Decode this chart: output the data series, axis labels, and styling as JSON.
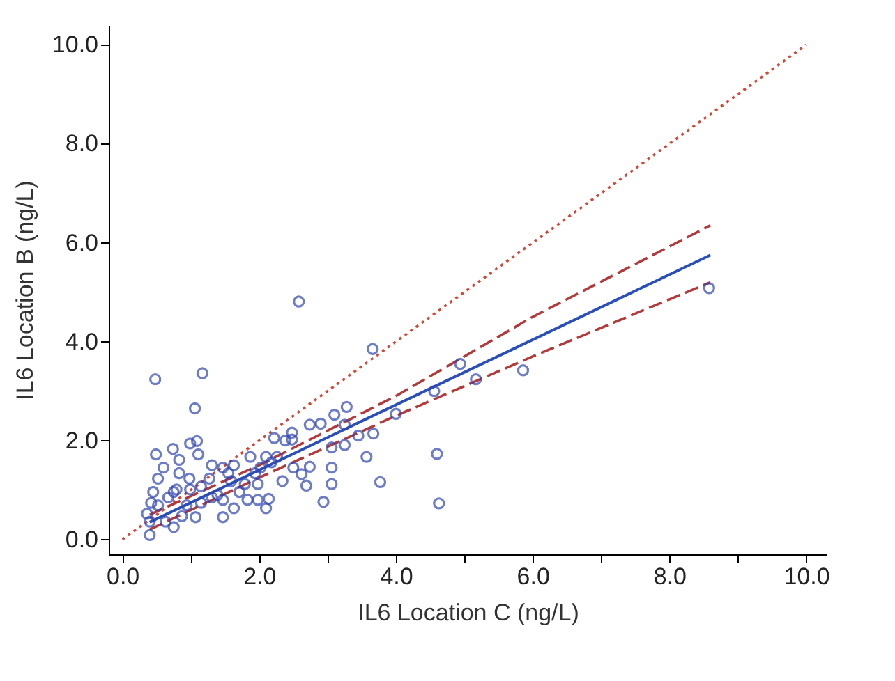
{
  "chart_data": {
    "type": "scatter",
    "xlabel": "IL6 Location C (ng/L)",
    "ylabel": "IL6 Location B (ng/L)",
    "xlim": [
      -0.2,
      10.3
    ],
    "ylim": [
      -0.3,
      10.4
    ],
    "xticks": [
      {
        "value": 0,
        "label": "0.0"
      },
      {
        "value": 1,
        "label": null
      },
      {
        "value": 2,
        "label": "2.0"
      },
      {
        "value": 3,
        "label": null
      },
      {
        "value": 4,
        "label": "4.0"
      },
      {
        "value": 5,
        "label": null
      },
      {
        "value": 6,
        "label": "6.0"
      },
      {
        "value": 7,
        "label": null
      },
      {
        "value": 8,
        "label": "8.0"
      },
      {
        "value": 9,
        "label": null
      },
      {
        "value": 10,
        "label": "10.0"
      }
    ],
    "yticks": [
      {
        "value": 0,
        "label": "0.0"
      },
      {
        "value": 2,
        "label": "2.0"
      },
      {
        "value": 4,
        "label": "4.0"
      },
      {
        "value": 6,
        "label": "6.0"
      },
      {
        "value": 8,
        "label": "8.0"
      },
      {
        "value": 10,
        "label": "10.0"
      }
    ],
    "grid": false,
    "series": [
      {
        "type": "line",
        "color": "#d04a3a",
        "line_style": "dotted",
        "x": [
          0,
          10
        ],
        "values": [
          0,
          10
        ]
      },
      {
        "type": "line",
        "color": "#b23a3a",
        "line_style": "dashed",
        "x": [
          0.4,
          2,
          4,
          6,
          8.6
        ],
        "values": [
          0.5,
          1.5,
          2.9,
          4.5,
          6.35
        ]
      },
      {
        "type": "line",
        "color": "#b23a3a",
        "line_style": "dashed",
        "x": [
          0.4,
          2,
          4,
          6,
          8.6
        ],
        "values": [
          0.2,
          1.25,
          2.5,
          3.7,
          5.2
        ]
      },
      {
        "type": "line",
        "color": "#2a4fb8",
        "line_style": "solid",
        "x": [
          0.4,
          8.6
        ],
        "values": [
          0.35,
          5.75
        ]
      },
      {
        "type": "scatter",
        "color": "#3046b0",
        "marker": "circle",
        "x": [
          2.58,
          3.66,
          0.48,
          1.17,
          1.06,
          4.94,
          5.17,
          5.86,
          8.58,
          4.56,
          4.6,
          4.63,
          4.0,
          3.77,
          3.67,
          3.57,
          3.45,
          3.28,
          3.1,
          3.25,
          3.25,
          3.06,
          3.06,
          3.06,
          2.94,
          2.74,
          2.9,
          2.74,
          2.69,
          2.62,
          2.48,
          2.48,
          2.38,
          2.22,
          2.34,
          2.5,
          2.1,
          2.14,
          1.98,
          1.87,
          2.1,
          2.18,
          1.94,
          1.79,
          1.83,
          1.63,
          1.47,
          1.47,
          1.59,
          1.47,
          1.31,
          1.63,
          1.27,
          1.31,
          1.07,
          1.15,
          1.11,
          1.09,
          0.99,
          0.98,
          0.99,
          0.83,
          0.83,
          0.74,
          0.79,
          0.87,
          0.67,
          0.63,
          0.49,
          0.52,
          0.6,
          0.45,
          0.42,
          0.4,
          0.4,
          0.52,
          0.36,
          0.75,
          0.94,
          1.15,
          1.39,
          1.71,
          1.98,
          2.26,
          2.02,
          1.55,
          0.75
        ],
        "values": [
          4.81,
          3.85,
          3.24,
          3.36,
          2.65,
          3.55,
          3.24,
          3.42,
          5.08,
          3.0,
          1.73,
          0.73,
          2.54,
          1.16,
          2.14,
          1.67,
          2.1,
          2.68,
          2.52,
          2.32,
          1.91,
          1.86,
          1.45,
          1.12,
          0.76,
          2.32,
          2.34,
          1.47,
          1.09,
          1.32,
          2.16,
          2.02,
          2.0,
          2.05,
          1.18,
          1.45,
          0.63,
          0.82,
          0.8,
          1.67,
          1.67,
          1.56,
          1.34,
          1.12,
          0.8,
          0.63,
          0.45,
          0.8,
          1.18,
          1.45,
          1.5,
          1.5,
          1.23,
          0.85,
          0.45,
          0.74,
          1.72,
          1.99,
          1.94,
          1.23,
          1.01,
          1.61,
          1.34,
          1.83,
          1.01,
          0.47,
          0.85,
          0.36,
          1.72,
          1.23,
          1.45,
          0.96,
          0.74,
          0.36,
          0.09,
          0.69,
          0.52,
          0.25,
          0.69,
          1.07,
          0.9,
          0.96,
          1.12,
          1.67,
          1.45,
          1.34,
          0.96
        ]
      }
    ]
  }
}
